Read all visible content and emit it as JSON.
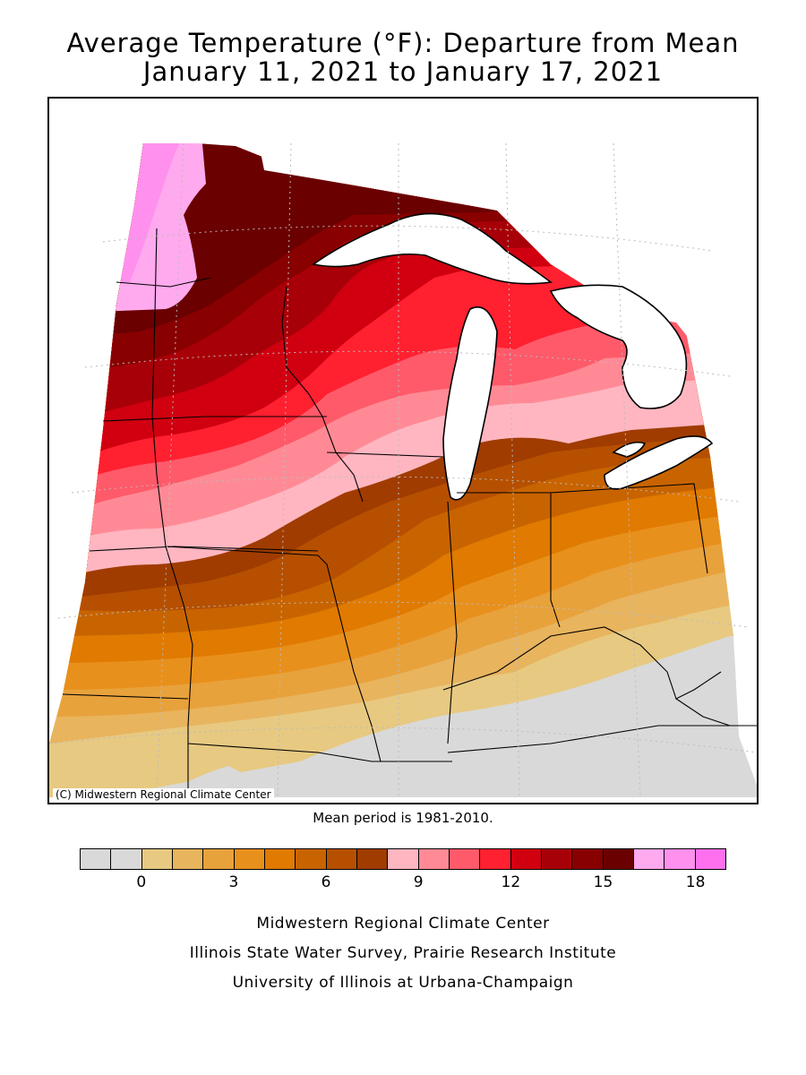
{
  "title": {
    "line1": "Average Temperature (°F): Departure from Mean",
    "line2": "January 11, 2021 to January 17, 2021"
  },
  "map": {
    "copyright": "(C) Midwestern Regional Climate Center",
    "region": "Midwest United States",
    "lake_color": "#ffffff",
    "boundary_color": "#000000",
    "grid_style": "dotted"
  },
  "mean_period": "Mean period is 1981-2010.",
  "legend": {
    "colors": [
      "#d9d9d9",
      "#d9d9d9",
      "#e7c981",
      "#e8b45e",
      "#e8a23c",
      "#e8901c",
      "#e07a00",
      "#c86400",
      "#b65000",
      "#a03c00",
      "#ffb6c1",
      "#ff8a95",
      "#ff5a6a",
      "#ff2030",
      "#d00010",
      "#a80008",
      "#880000",
      "#6a0000",
      "#ffaaee",
      "#ff90ee",
      "#ff70ee"
    ],
    "tick_labels": [
      {
        "label": "0",
        "value": 0
      },
      {
        "label": "3",
        "value": 3
      },
      {
        "label": "6",
        "value": 6
      },
      {
        "label": "9",
        "value": 9
      },
      {
        "label": "12",
        "value": 12
      },
      {
        "label": "15",
        "value": 15
      },
      {
        "label": "18",
        "value": 18
      }
    ],
    "min_value": -1,
    "step": 1
  },
  "credits": {
    "line1": "Midwestern Regional Climate Center",
    "line2": "Illinois State Water Survey, Prairie Research Institute",
    "line3": "University of Illinois at Urbana-Champaign"
  }
}
